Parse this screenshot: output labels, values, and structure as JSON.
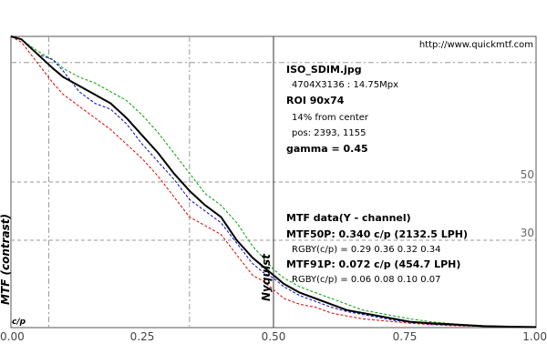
{
  "url": "http://www.quickmtf.com",
  "info": {
    "filename": "ISO_SDIM.jpg",
    "dimensions": "4704X3136 : 14.75Mpx",
    "roi": "ROI 90x74",
    "from_center": "14% from center",
    "pos": "pos: 2393, 1155",
    "gamma": "gamma = 0.45",
    "mtf_header": "MTF data(Y - channel)",
    "mtf50": "MTF50P: 0.340 c/p (2132.5 LPH)",
    "mtf50_rgby": "RGBY(c/p) = 0.29 0.36 0.32 0.34",
    "mtf91": "MTF91P: 0.072 c/p (454.7 LPH)",
    "mtf91_rgby": "RGBY(c/p) = 0.06 0.08 0.10 0.07"
  },
  "colors": {
    "y": "#000000",
    "red": "#e00000",
    "green": "#00a000",
    "blue": "#0000cc",
    "grid": "#999999",
    "frame": "#555555"
  },
  "chart_data": {
    "type": "line",
    "xlabel": "c/p",
    "ylabel": "MTF (contrast)",
    "xlim": [
      0,
      1
    ],
    "ylim": [
      0,
      100
    ],
    "x_ticks": [
      {
        "value": 0,
        "label": "0.00"
      },
      {
        "value": 0.25,
        "label": "0.25"
      },
      {
        "value": 0.5,
        "label": "0.50"
      },
      {
        "value": 0.75,
        "label": "0.75"
      },
      {
        "value": 1,
        "label": "1.00"
      }
    ],
    "ref_lines": [
      {
        "value": 50,
        "label": "50"
      },
      {
        "value": 30,
        "label": "30"
      }
    ],
    "nyquist": {
      "x": 0.5,
      "label": "Nyquist"
    },
    "series": [
      {
        "name": "Y",
        "color": "#000000",
        "x": [
          0,
          0.02,
          0.05,
          0.08,
          0.1,
          0.13,
          0.16,
          0.19,
          0.22,
          0.25,
          0.28,
          0.31,
          0.34,
          0.37,
          0.4,
          0.43,
          0.46,
          0.48,
          0.5,
          0.52,
          0.55,
          0.58,
          0.61,
          0.64,
          0.67,
          0.7,
          0.73,
          0.76,
          0.8,
          0.85,
          0.9,
          0.95,
          1.0
        ],
        "y": [
          100,
          99,
          94,
          89,
          86,
          83,
          80,
          77,
          72,
          66,
          60,
          53,
          47,
          42,
          38,
          30,
          24,
          21,
          18,
          15,
          12,
          10,
          8,
          6,
          5,
          4,
          3,
          2,
          1.5,
          1,
          0.5,
          0.3,
          0.2
        ]
      },
      {
        "name": "R",
        "color": "#e00000",
        "x": [
          0,
          0.02,
          0.05,
          0.08,
          0.1,
          0.13,
          0.16,
          0.19,
          0.22,
          0.25,
          0.28,
          0.31,
          0.34,
          0.37,
          0.4,
          0.43,
          0.46,
          0.48,
          0.5,
          0.52,
          0.55,
          0.58,
          0.61,
          0.64,
          0.67,
          0.7,
          0.73,
          0.76,
          0.8,
          0.85,
          0.9,
          0.95,
          1.0
        ],
        "y": [
          100,
          98,
          91,
          84,
          80,
          76,
          72,
          68,
          63,
          58,
          52,
          45,
          38,
          35,
          32,
          25,
          18,
          16,
          13,
          10,
          8,
          7,
          5,
          4,
          3,
          2.5,
          2,
          1.5,
          1,
          0.6,
          0.4,
          0.2,
          0.1
        ]
      },
      {
        "name": "G",
        "color": "#00a000",
        "x": [
          0,
          0.02,
          0.05,
          0.08,
          0.1,
          0.13,
          0.16,
          0.19,
          0.22,
          0.25,
          0.28,
          0.31,
          0.34,
          0.37,
          0.4,
          0.43,
          0.46,
          0.48,
          0.5,
          0.52,
          0.55,
          0.58,
          0.61,
          0.64,
          0.67,
          0.7,
          0.73,
          0.76,
          0.8,
          0.85,
          0.9,
          0.95,
          1.0
        ],
        "y": [
          100,
          99,
          95,
          92,
          89,
          86,
          84,
          81,
          78,
          73,
          67,
          60,
          53,
          46,
          42,
          36,
          28,
          24,
          20,
          17,
          14,
          12,
          10,
          8,
          6,
          5,
          4,
          3,
          2,
          1.2,
          0.7,
          0.4,
          0.2
        ]
      },
      {
        "name": "B",
        "color": "#0000cc",
        "x": [
          0,
          0.02,
          0.05,
          0.08,
          0.1,
          0.13,
          0.16,
          0.19,
          0.22,
          0.25,
          0.28,
          0.31,
          0.34,
          0.37,
          0.4,
          0.43,
          0.46,
          0.48,
          0.5,
          0.52,
          0.55,
          0.58,
          0.61,
          0.64,
          0.67,
          0.7,
          0.73,
          0.76,
          0.8,
          0.85,
          0.9,
          0.95,
          1.0
        ],
        "y": [
          100,
          99,
          94,
          92,
          88,
          81,
          77,
          75,
          70,
          63,
          57,
          51,
          44,
          40,
          36,
          29,
          22,
          19,
          17,
          14,
          11,
          9,
          7,
          5.5,
          4.5,
          3.5,
          2.5,
          1.8,
          1.2,
          0.8,
          0.4,
          0.2,
          0.1
        ]
      }
    ]
  }
}
